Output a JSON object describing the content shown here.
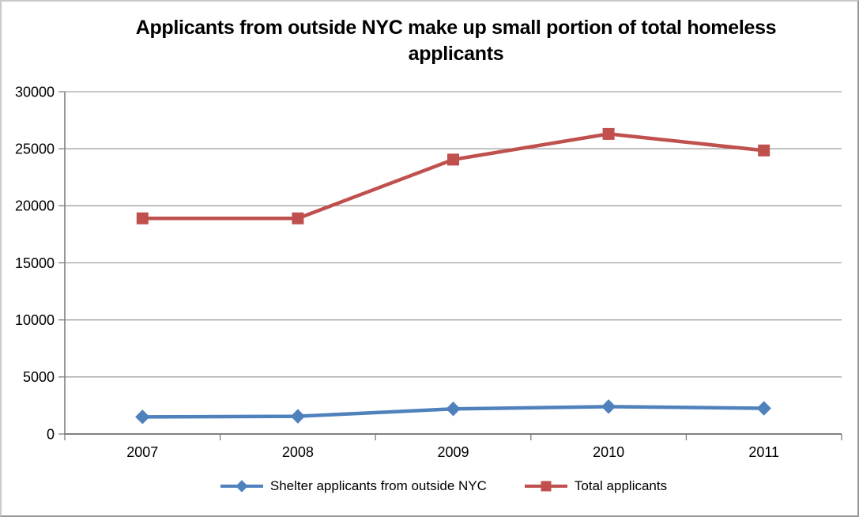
{
  "chart_data": {
    "type": "line",
    "title": "Applicants from outside NYC make up small portion of total homeless applicants",
    "categories": [
      "2007",
      "2008",
      "2009",
      "2010",
      "2011"
    ],
    "series": [
      {
        "name": "Shelter applicants from outside NYC",
        "values": [
          1500,
          1550,
          2200,
          2400,
          2250
        ],
        "color": "#4F81BD",
        "marker": "diamond"
      },
      {
        "name": "Total applicants",
        "values": [
          18900,
          18900,
          24050,
          26300,
          24850
        ],
        "color": "#C0504D",
        "marker": "square"
      }
    ],
    "xlabel": "",
    "ylabel": "",
    "ylim": [
      0,
      30000
    ],
    "yticks": [
      0,
      5000,
      10000,
      15000,
      20000,
      25000,
      30000
    ],
    "grid": true,
    "legend_position": "bottom",
    "colors": {
      "gridline": "#A3A3A3",
      "axis": "#7F7F7F",
      "text": "#000000",
      "background": "#FFFFFF"
    }
  }
}
